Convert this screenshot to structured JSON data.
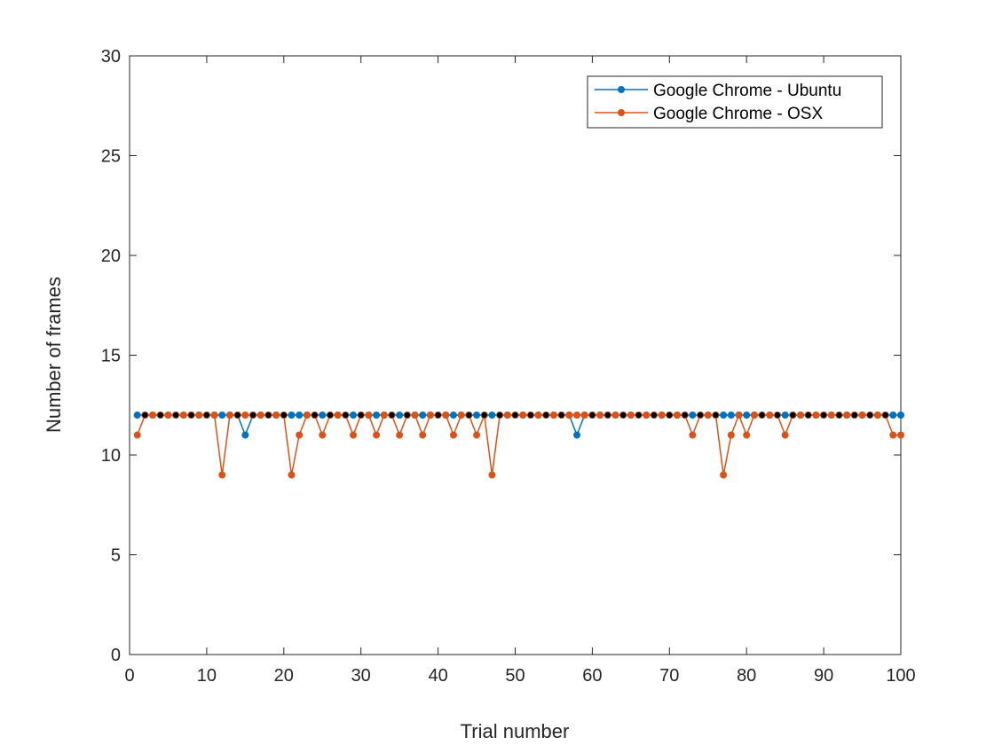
{
  "chart_data": {
    "type": "line",
    "xlabel": "Trial number",
    "ylabel": "Number of frames",
    "xlim": [
      0,
      100
    ],
    "ylim": [
      0,
      30
    ],
    "xticks": [
      0,
      10,
      20,
      30,
      40,
      50,
      60,
      70,
      80,
      90,
      100
    ],
    "yticks": [
      0,
      5,
      10,
      15,
      20,
      25,
      30
    ],
    "grid": false,
    "legend_position": "top-right",
    "x": [
      1,
      2,
      3,
      4,
      5,
      6,
      7,
      8,
      9,
      10,
      11,
      12,
      13,
      14,
      15,
      16,
      17,
      18,
      19,
      20,
      21,
      22,
      23,
      24,
      25,
      26,
      27,
      28,
      29,
      30,
      31,
      32,
      33,
      34,
      35,
      36,
      37,
      38,
      39,
      40,
      41,
      42,
      43,
      44,
      45,
      46,
      47,
      48,
      49,
      50,
      51,
      52,
      53,
      54,
      55,
      56,
      57,
      58,
      59,
      60,
      61,
      62,
      63,
      64,
      65,
      66,
      67,
      68,
      69,
      70,
      71,
      72,
      73,
      74,
      75,
      76,
      77,
      78,
      79,
      80,
      81,
      82,
      83,
      84,
      85,
      86,
      87,
      88,
      89,
      90,
      91,
      92,
      93,
      94,
      95,
      96,
      97,
      98,
      99,
      100
    ],
    "series": [
      {
        "name": "Google Chrome - Ubuntu",
        "color": "#0072BD",
        "values": [
          12,
          12,
          12,
          12,
          12,
          12,
          12,
          12,
          12,
          12,
          12,
          12,
          12,
          12,
          11,
          12,
          12,
          12,
          12,
          12,
          12,
          12,
          12,
          12,
          12,
          12,
          12,
          12,
          12,
          12,
          12,
          12,
          12,
          12,
          12,
          12,
          12,
          12,
          12,
          12,
          12,
          12,
          12,
          12,
          12,
          12,
          12,
          12,
          12,
          12,
          12,
          12,
          12,
          12,
          12,
          12,
          12,
          11,
          12,
          12,
          12,
          12,
          12,
          12,
          12,
          12,
          12,
          12,
          12,
          12,
          12,
          12,
          12,
          12,
          12,
          12,
          12,
          12,
          12,
          12,
          12,
          12,
          12,
          12,
          12,
          12,
          12,
          12,
          12,
          12,
          12,
          12,
          12,
          12,
          12,
          12,
          12,
          12,
          12,
          12
        ]
      },
      {
        "name": "Google Chrome - OSX",
        "color": "#D95319",
        "values": [
          11,
          12,
          12,
          12,
          12,
          12,
          12,
          12,
          12,
          12,
          12,
          9,
          12,
          12,
          12,
          12,
          12,
          12,
          12,
          12,
          9,
          11,
          12,
          12,
          11,
          12,
          12,
          12,
          11,
          12,
          12,
          11,
          12,
          12,
          11,
          12,
          12,
          11,
          12,
          12,
          12,
          11,
          12,
          12,
          11,
          12,
          9,
          12,
          12,
          12,
          12,
          12,
          12,
          12,
          12,
          12,
          12,
          12,
          12,
          12,
          12,
          12,
          12,
          12,
          12,
          12,
          12,
          12,
          12,
          12,
          12,
          12,
          11,
          12,
          12,
          12,
          9,
          11,
          12,
          11,
          12,
          12,
          12,
          12,
          11,
          12,
          12,
          12,
          12,
          12,
          12,
          12,
          12,
          12,
          12,
          12,
          12,
          12,
          11,
          11
        ]
      }
    ],
    "overlap_marker_color": "#000000"
  }
}
